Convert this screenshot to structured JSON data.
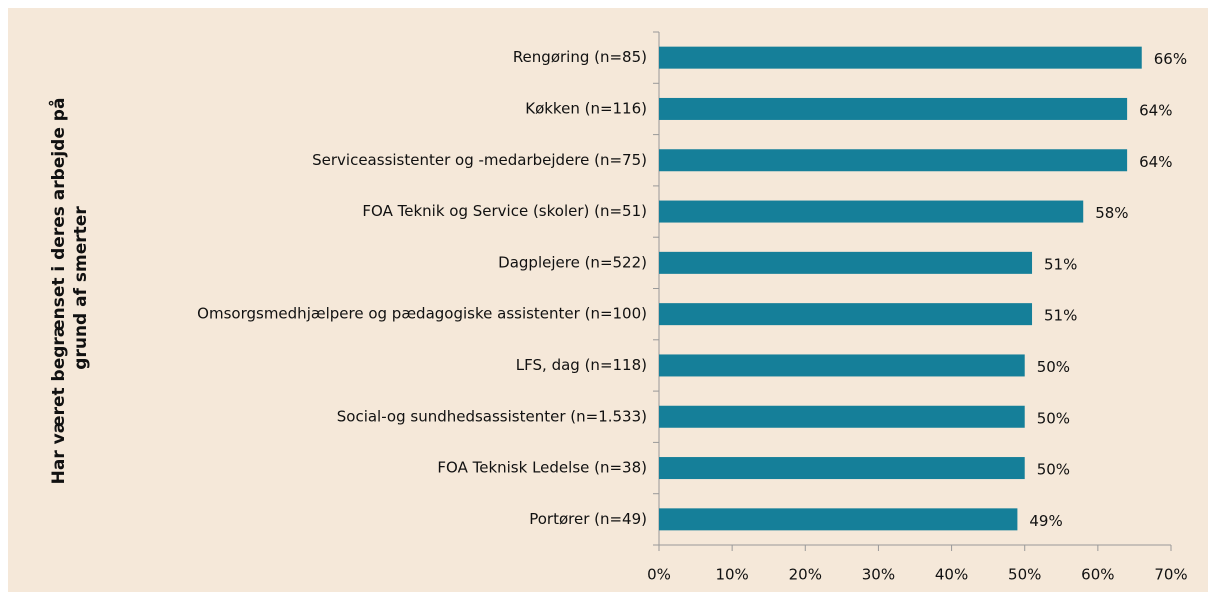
{
  "chart_data": {
    "type": "bar",
    "orientation": "horizontal",
    "ylabel": [
      "Har været begrænset i deres arbejde på",
      "grund af smerter"
    ],
    "categories": [
      "Rengøring (n=85)",
      "Køkken (n=116)",
      "Serviceassistenter og -medarbejdere (n=75)",
      "FOA Teknik og Service (skoler) (n=51)",
      "Dagplejere (n=522)",
      "Omsorgsmedhjælpere og pædagogiske assistenter (n=100)",
      "LFS, dag (n=118)",
      "Social-og sundhedsassistenter (n=1.533)",
      "FOA Teknisk Ledelse (n=38)",
      "Portører (n=49)"
    ],
    "values": [
      66,
      64,
      64,
      58,
      51,
      51,
      50,
      50,
      50,
      49
    ],
    "value_labels": [
      "66%",
      "64%",
      "64%",
      "58%",
      "51%",
      "51%",
      "50%",
      "50%",
      "50%",
      "49%"
    ],
    "color": "#157f99",
    "xlim": [
      0,
      70
    ],
    "xticks": [
      {
        "value": 0,
        "label": "0%"
      },
      {
        "value": 10,
        "label": "10%"
      },
      {
        "value": 20,
        "label": "20%"
      },
      {
        "value": 30,
        "label": "30%"
      },
      {
        "value": 40,
        "label": "40%"
      },
      {
        "value": 50,
        "label": "50%"
      },
      {
        "value": 60,
        "label": "60%"
      },
      {
        "value": 70,
        "label": "70%"
      }
    ],
    "grid": false
  }
}
